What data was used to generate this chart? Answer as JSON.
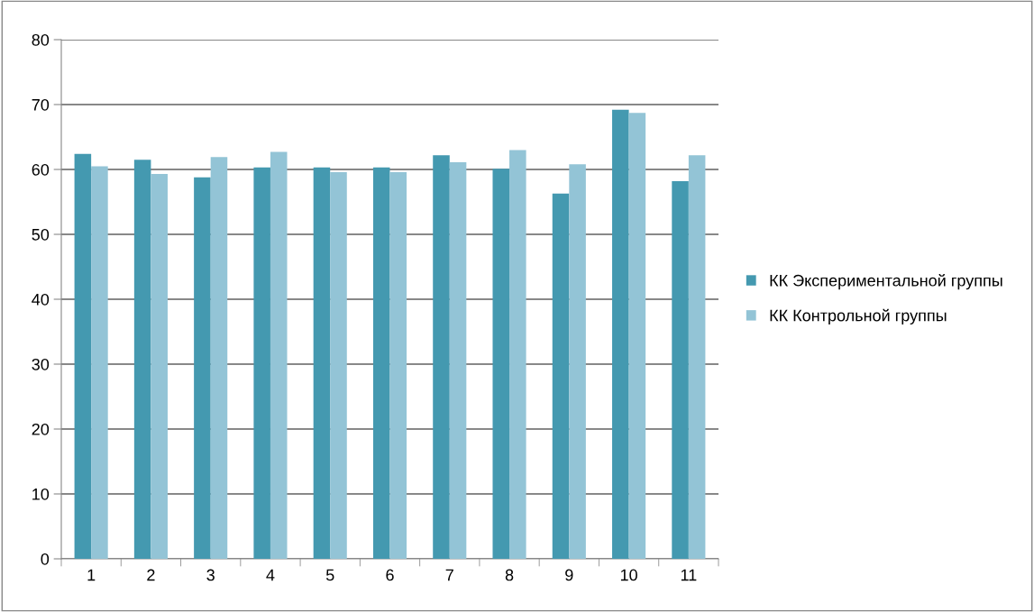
{
  "chart_data": {
    "type": "bar",
    "categories": [
      "1",
      "2",
      "3",
      "4",
      "5",
      "6",
      "7",
      "8",
      "9",
      "10",
      "11"
    ],
    "series": [
      {
        "name": "КК Экспериментальной группы",
        "color": "#4499b0",
        "values": [
          62.4,
          61.5,
          58.8,
          60.3,
          60.3,
          60.3,
          62.2,
          60.1,
          56.3,
          69.2,
          58.2
        ]
      },
      {
        "name": "КК Контрольной группы",
        "color": "#93c4d6",
        "values": [
          60.5,
          59.3,
          61.9,
          62.7,
          59.6,
          59.6,
          61.1,
          63.0,
          60.8,
          68.7,
          62.2
        ]
      }
    ],
    "ylim": [
      0,
      80
    ],
    "yticks": [
      0,
      10,
      20,
      30,
      40,
      50,
      60,
      70,
      80
    ],
    "grid": "y",
    "legend": "right"
  }
}
